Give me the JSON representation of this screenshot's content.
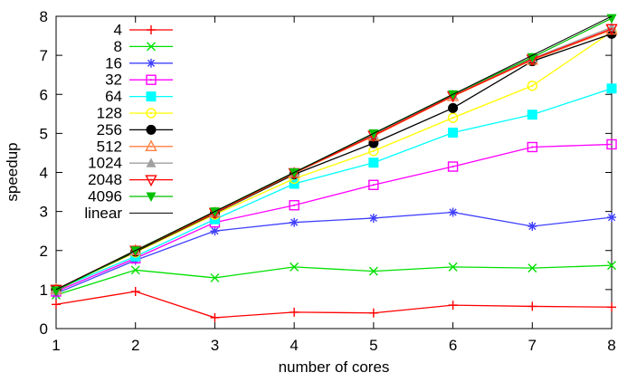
{
  "chart_data": {
    "type": "line",
    "title": "",
    "xlabel": "number of cores",
    "ylabel": "speedup",
    "x": [
      1,
      2,
      3,
      4,
      5,
      6,
      7,
      8
    ],
    "xlim": [
      1,
      8
    ],
    "ylim": [
      0,
      8
    ],
    "xticks": [
      1,
      2,
      3,
      4,
      5,
      6,
      7,
      8
    ],
    "yticks": [
      0,
      1,
      2,
      3,
      4,
      5,
      6,
      7,
      8
    ],
    "grid": false,
    "legend_position": "top-left-inside",
    "series": [
      {
        "name": "4",
        "color": "#ff0000",
        "marker": "plus",
        "values": [
          0.62,
          0.95,
          0.28,
          0.42,
          0.4,
          0.6,
          0.57,
          0.55
        ]
      },
      {
        "name": "8",
        "color": "#00e000",
        "marker": "cross",
        "values": [
          0.86,
          1.5,
          1.3,
          1.58,
          1.47,
          1.58,
          1.55,
          1.62
        ]
      },
      {
        "name": "16",
        "color": "#4040ff",
        "marker": "asterisk",
        "values": [
          0.9,
          1.75,
          2.5,
          2.72,
          2.83,
          2.98,
          2.62,
          2.85
        ]
      },
      {
        "name": "32",
        "color": "#ff00ff",
        "marker": "square-open",
        "values": [
          0.95,
          1.8,
          2.72,
          3.16,
          3.68,
          4.15,
          4.65,
          4.72
        ]
      },
      {
        "name": "64",
        "color": "#00ffff",
        "marker": "square-filled",
        "values": [
          1.0,
          1.85,
          2.8,
          3.71,
          4.25,
          5.02,
          5.48,
          6.15
        ]
      },
      {
        "name": "128",
        "color": "#ffff00",
        "marker": "circle-open",
        "values": [
          1.0,
          1.95,
          2.92,
          3.84,
          4.55,
          5.4,
          6.22,
          7.6
        ]
      },
      {
        "name": "256",
        "color": "#000000",
        "marker": "circle-filled",
        "values": [
          1.0,
          1.97,
          2.95,
          3.95,
          4.75,
          5.65,
          6.85,
          7.55
        ]
      },
      {
        "name": "512",
        "color": "#ff8040",
        "marker": "triangle-open",
        "values": [
          1.0,
          2.0,
          2.96,
          3.98,
          4.93,
          5.95,
          6.88,
          7.65
        ]
      },
      {
        "name": "1024",
        "color": "#a0a0a0",
        "marker": "triangle-filled",
        "values": [
          1.0,
          2.0,
          2.98,
          4.0,
          4.97,
          5.98,
          6.92,
          7.72
        ]
      },
      {
        "name": "2048",
        "color": "#ff0000",
        "marker": "tridown-open",
        "values": [
          1.0,
          2.0,
          2.97,
          3.99,
          4.95,
          5.96,
          6.9,
          7.68
        ]
      },
      {
        "name": "4096",
        "color": "#00c000",
        "marker": "tridown-filled",
        "values": [
          0.97,
          2.0,
          3.0,
          4.0,
          5.0,
          6.0,
          6.95,
          7.95
        ]
      },
      {
        "name": "linear",
        "color": "#000000",
        "marker": "none",
        "values": [
          1,
          2,
          3,
          4,
          5,
          6,
          7,
          8
        ]
      }
    ]
  }
}
